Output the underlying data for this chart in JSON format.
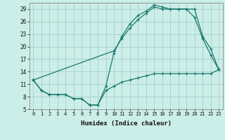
{
  "xlabel": "Humidex (Indice chaleur)",
  "background_color": "#cceee8",
  "grid_color": "#aad4ce",
  "line_color": "#1a7a6e",
  "xlim": [
    -0.5,
    23.5
  ],
  "ylim": [
    5,
    30.5
  ],
  "yticks": [
    5,
    8,
    11,
    14,
    17,
    20,
    23,
    26,
    29
  ],
  "xticks": [
    0,
    1,
    2,
    3,
    4,
    5,
    6,
    7,
    8,
    9,
    10,
    11,
    12,
    13,
    14,
    15,
    16,
    17,
    18,
    19,
    20,
    21,
    22,
    23
  ],
  "line1_x": [
    0,
    1,
    2,
    3,
    4,
    5,
    6,
    7,
    8,
    9,
    10,
    11,
    12,
    13,
    14,
    15,
    16,
    17,
    18,
    19,
    20,
    21,
    22,
    23
  ],
  "line1_y": [
    12,
    9.5,
    8.5,
    8.5,
    8.5,
    7.5,
    7.5,
    6.0,
    6.0,
    10.5,
    18.5,
    22.5,
    25.5,
    27.5,
    28.5,
    30.0,
    29.5,
    29.0,
    29.0,
    29.0,
    27.0,
    22.0,
    18.0,
    14.5
  ],
  "line2_x": [
    0,
    10,
    11,
    12,
    13,
    14,
    15,
    16,
    17,
    18,
    19,
    20,
    21,
    22,
    23
  ],
  "line2_y": [
    12,
    19.0,
    22.0,
    24.5,
    26.5,
    28.0,
    29.5,
    29.0,
    29.0,
    29.0,
    29.0,
    29.0,
    22.5,
    19.5,
    14.5
  ],
  "line3_x": [
    0,
    1,
    2,
    3,
    4,
    5,
    6,
    7,
    8,
    9,
    10,
    11,
    12,
    13,
    14,
    15,
    16,
    17,
    18,
    19,
    20,
    21,
    22,
    23
  ],
  "line3_y": [
    12,
    9.5,
    8.5,
    8.5,
    8.5,
    7.5,
    7.5,
    6.0,
    6.0,
    9.5,
    10.5,
    11.5,
    12.0,
    12.5,
    13.0,
    13.5,
    13.5,
    13.5,
    13.5,
    13.5,
    13.5,
    13.5,
    13.5,
    14.5
  ]
}
